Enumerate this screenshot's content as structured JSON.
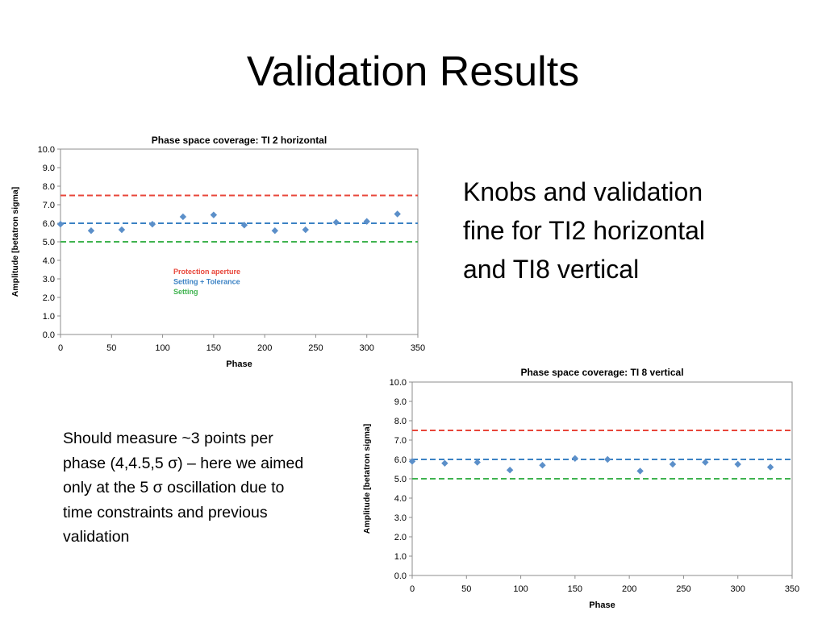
{
  "slide": {
    "title": "Validation Results",
    "right_text": "Knobs and validation fine for TI2 horizontal and TI8 vertical",
    "left_text": "Should measure ~3 points per phase (4,4.5,5 σ) – here we aimed only at the 5 σ oscillation due to time constraints and previous validation"
  },
  "colors": {
    "protection": "#e8463a",
    "tolerance": "#3b82c4",
    "setting": "#3fb34f",
    "points": "#5b8fc9",
    "plot_border": "#8c8c8c"
  },
  "chart_data": [
    {
      "type": "scatter",
      "title": "Phase space coverage: TI 2 horizontal",
      "xlabel": "Phase",
      "ylabel": "Amplitude [betatron sigma]",
      "xlim": [
        0,
        350
      ],
      "ylim": [
        0,
        10
      ],
      "xticks": [
        "0",
        "50",
        "100",
        "150",
        "200",
        "250",
        "300",
        "350"
      ],
      "yticks": [
        "0.0",
        "1.0",
        "2.0",
        "3.0",
        "4.0",
        "5.0",
        "6.0",
        "7.0",
        "8.0",
        "9.0",
        "10.0"
      ],
      "grid": false,
      "x": [
        0,
        30,
        60,
        90,
        120,
        150,
        180,
        210,
        240,
        270,
        300,
        330
      ],
      "y": [
        5.95,
        5.6,
        5.65,
        5.95,
        6.35,
        6.45,
        5.9,
        5.6,
        5.65,
        6.05,
        6.1,
        6.5
      ],
      "lines": [
        {
          "name": "Protection aperture",
          "y": 7.5,
          "color": "#e8463a"
        },
        {
          "name": "Setting + Tolerance",
          "y": 6.0,
          "color": "#3b82c4"
        },
        {
          "name": "Setting",
          "y": 5.0,
          "color": "#3fb34f"
        }
      ],
      "legend": "inside-left"
    },
    {
      "type": "scatter",
      "title": "Phase space coverage: TI 8 vertical",
      "xlabel": "Phase",
      "ylabel": "Amplitude [betatron sigma]",
      "xlim": [
        0,
        350
      ],
      "ylim": [
        0,
        10
      ],
      "xticks": [
        "0",
        "50",
        "100",
        "150",
        "200",
        "250",
        "300",
        "350"
      ],
      "yticks": [
        "0.0",
        "1.0",
        "2.0",
        "3.0",
        "4.0",
        "5.0",
        "6.0",
        "7.0",
        "8.0",
        "9.0",
        "10.0"
      ],
      "grid": false,
      "x": [
        0,
        30,
        60,
        90,
        120,
        150,
        180,
        210,
        240,
        270,
        300,
        330
      ],
      "y": [
        5.9,
        5.8,
        5.85,
        5.45,
        5.7,
        6.05,
        6.0,
        5.4,
        5.75,
        5.85,
        5.75,
        5.6
      ],
      "lines": [
        {
          "y": 7.5,
          "color": "#e8463a"
        },
        {
          "y": 6.0,
          "color": "#3b82c4"
        },
        {
          "y": 5.0,
          "color": "#3fb34f"
        }
      ]
    }
  ]
}
